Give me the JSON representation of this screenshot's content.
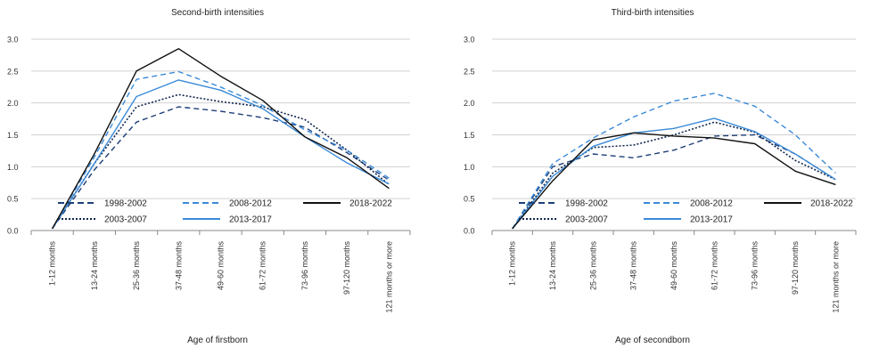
{
  "chart_data": [
    {
      "type": "line",
      "title": "Second-birth intensities",
      "xlabel": "Age of firstborn",
      "ylabel": "",
      "ylim": [
        0,
        3.0
      ],
      "yticks": [
        "0.0",
        "0.5",
        "1.0",
        "1.5",
        "2.0",
        "2.5",
        "3.0"
      ],
      "grid": "horizontal",
      "legend": "bottom-inside",
      "categories": [
        "1-12 months",
        "13-24 months",
        "25-36 months",
        "37-48 months",
        "49-60 months",
        "61-72 months",
        "73-96 months",
        "97-120 months",
        "121 months or more"
      ],
      "series": [
        {
          "name": "1998-2002",
          "color": "#1d3f78",
          "style": "dashed",
          "values": [
            0.03,
            0.95,
            1.7,
            1.94,
            1.87,
            1.77,
            1.62,
            1.22,
            0.79
          ]
        },
        {
          "name": "2003-2007",
          "color": "#10264e",
          "style": "dotted",
          "values": [
            0.03,
            1.05,
            1.94,
            2.13,
            2.02,
            1.94,
            1.74,
            1.26,
            0.72
          ]
        },
        {
          "name": "2008-2012",
          "color": "#3a8ad8",
          "style": "dashed",
          "values": [
            0.03,
            1.15,
            2.37,
            2.49,
            2.25,
            1.96,
            1.58,
            1.26,
            0.82
          ]
        },
        {
          "name": "2013-2017",
          "color": "#3a8ad8",
          "style": "solid",
          "values": [
            0.03,
            1.05,
            2.1,
            2.36,
            2.2,
            1.91,
            1.47,
            1.06,
            0.73
          ]
        },
        {
          "name": "2018-2022",
          "color": "#111111",
          "style": "solid",
          "values": [
            0.03,
            1.2,
            2.5,
            2.85,
            2.42,
            2.04,
            1.47,
            1.14,
            0.66
          ]
        }
      ]
    },
    {
      "type": "line",
      "title": "Third-birth intensities",
      "xlabel": "Age of secondborn",
      "ylabel": "",
      "ylim": [
        0,
        3.0
      ],
      "yticks": [
        "0.0",
        "0.5",
        "1.0",
        "1.5",
        "2.0",
        "2.5",
        "3.0"
      ],
      "grid": "horizontal",
      "legend": "bottom-inside",
      "categories": [
        "1-12 months",
        "13-24 months",
        "25-36 months",
        "37-48 months",
        "49-60 months",
        "61-72 months",
        "73-96 months",
        "97-120 months",
        "121 months or more"
      ],
      "series": [
        {
          "name": "1998-2002",
          "color": "#1d3f78",
          "style": "dashed",
          "values": [
            0.03,
            1.0,
            1.2,
            1.14,
            1.26,
            1.48,
            1.5,
            1.2,
            0.8
          ]
        },
        {
          "name": "2003-2007",
          "color": "#10264e",
          "style": "dotted",
          "values": [
            0.03,
            0.9,
            1.3,
            1.34,
            1.5,
            1.7,
            1.54,
            1.1,
            0.8
          ]
        },
        {
          "name": "2008-2012",
          "color": "#3a8ad8",
          "style": "dashed",
          "values": [
            0.03,
            1.05,
            1.45,
            1.78,
            2.03,
            2.15,
            1.95,
            1.5,
            0.9
          ]
        },
        {
          "name": "2013-2017",
          "color": "#3a8ad8",
          "style": "solid",
          "values": [
            0.03,
            0.85,
            1.32,
            1.53,
            1.6,
            1.76,
            1.55,
            1.2,
            0.8
          ]
        },
        {
          "name": "2018-2022",
          "color": "#111111",
          "style": "solid",
          "values": [
            0.03,
            0.78,
            1.42,
            1.53,
            1.48,
            1.45,
            1.36,
            0.93,
            0.72
          ]
        }
      ]
    }
  ]
}
